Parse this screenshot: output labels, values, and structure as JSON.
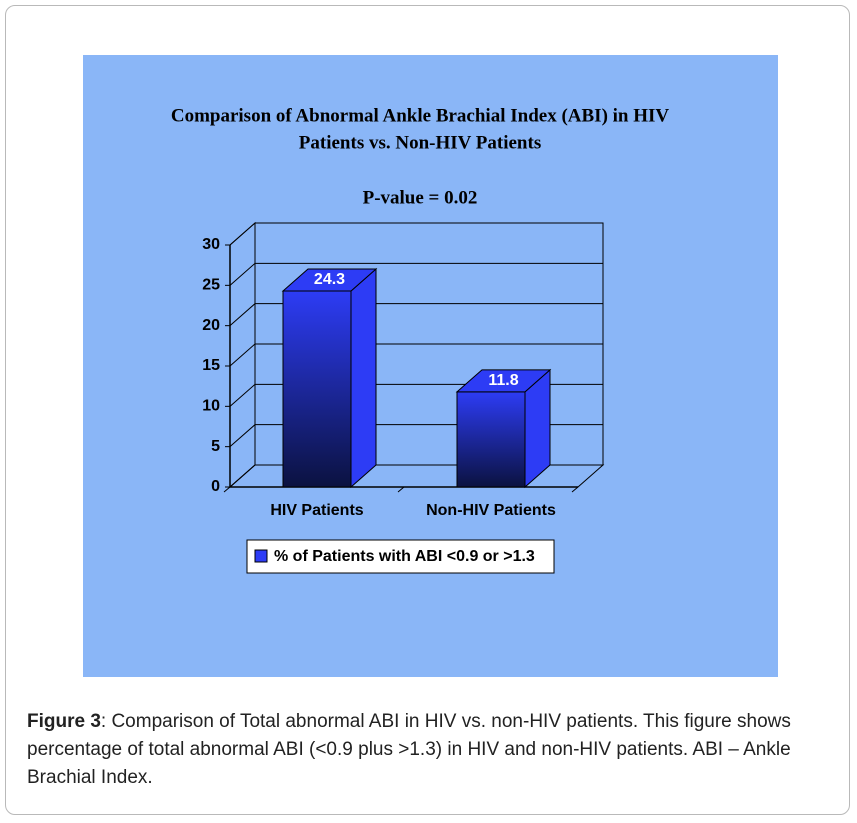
{
  "chart_data": {
    "type": "bar3d",
    "title": [
      "Comparison of Abnormal Ankle Brachial Index (ABI) in HIV",
      "Patients vs. Non-HIV Patients"
    ],
    "subtitle": "P-value = 0.02",
    "categories": [
      "HIV Patients",
      "Non-HIV Patients"
    ],
    "series": [
      {
        "name": "% of Patients with ABI <0.9 or >1.3",
        "color": "#2d3cf5",
        "values": [
          24.3,
          11.8
        ]
      }
    ],
    "ylim": [
      0,
      30
    ],
    "yticks": [
      0,
      5,
      10,
      15,
      20,
      25,
      30
    ],
    "grid": true,
    "legend": "bottom"
  },
  "caption": {
    "label": "Figure 3",
    "text": ": Comparison of Total abnormal ABI in HIV vs. non-HIV patients. This figure shows percentage of total abnormal ABI (<0.9 plus >1.3) in HIV and non-HIV patients. ABI – Ankle Brachial Index."
  }
}
